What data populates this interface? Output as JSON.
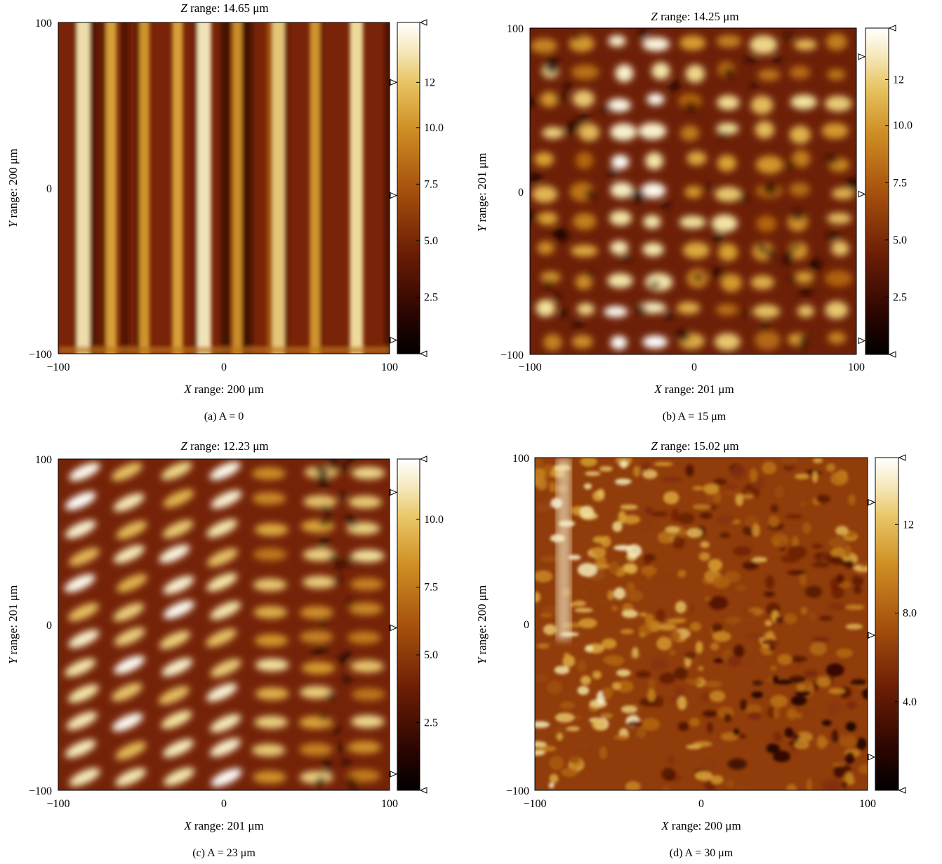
{
  "panels": [
    {
      "z_title_prefix": "Z",
      "z_title_rest": " range: 14.65 μm",
      "x_label_prefix": "X",
      "x_label_rest": " range: 200 μm",
      "y_label_prefix": "Y",
      "y_label_rest": " range: 200 μm",
      "caption": "(a)  A = 0",
      "x_ticks": [
        "−100",
        "0",
        "100"
      ],
      "y_ticks": [
        "100",
        "0",
        "−100"
      ],
      "colorbar_ticks": [
        "12",
        "10.0",
        "7.5",
        "5.0",
        "2.5"
      ]
    },
    {
      "z_title_prefix": "Z",
      "z_title_rest": " range: 14.25 μm",
      "x_label_prefix": "X",
      "x_label_rest": " range: 201 μm",
      "y_label_prefix": "Y",
      "y_label_rest": " range: 201 μm",
      "caption": "(b)  A = 15 μm",
      "x_ticks": [
        "−100",
        "0",
        "100"
      ],
      "y_ticks": [
        "100",
        "0",
        "−100"
      ],
      "colorbar_ticks": [
        "12",
        "10.0",
        "7.5",
        "5.0",
        "2.5"
      ]
    },
    {
      "z_title_prefix": "Z",
      "z_title_rest": " range: 12.23 μm",
      "x_label_prefix": "X",
      "x_label_rest": " range: 201 μm",
      "y_label_prefix": "Y",
      "y_label_rest": " range: 201 μm",
      "caption": "(c)  A = 23 μm",
      "x_ticks": [
        "−100",
        "0",
        "100"
      ],
      "y_ticks": [
        "100",
        "0",
        "−100"
      ],
      "colorbar_ticks": [
        "10.0",
        "7.5",
        "5.0",
        "2.5"
      ]
    },
    {
      "z_title_prefix": "Z",
      "z_title_rest": " range: 15.02 μm",
      "x_label_prefix": "X",
      "x_label_rest": " range: 200 μm",
      "y_label_prefix": "Y",
      "y_label_rest": " range: 200 μm",
      "caption": "(d)  A = 30 μm",
      "x_ticks": [
        "−100",
        "0",
        "100"
      ],
      "y_ticks": [
        "100",
        "0",
        "−100"
      ],
      "colorbar_ticks": [
        "12",
        "8.0",
        "4.0"
      ]
    }
  ],
  "chart_data": [
    {
      "type": "heatmap",
      "title": "Z range: 14.65 μm",
      "xlabel": "X range: 200 μm",
      "ylabel": "Y range: 200 μm",
      "xlim": [
        -100,
        100
      ],
      "ylim": [
        -100,
        100
      ],
      "x_ticks": [
        -100,
        0,
        100
      ],
      "y_ticks": [
        -100,
        0,
        100
      ],
      "colorbar": {
        "range": [
          0,
          14.65
        ],
        "ticks": [
          12,
          10.0,
          7.5,
          5.0,
          2.5
        ],
        "markers": [
          12,
          7,
          0.6
        ]
      },
      "pattern": "vertical-stripes",
      "stripe_x": [
        -85,
        -68,
        -48,
        -28,
        -12,
        8,
        28,
        33,
        55,
        80
      ],
      "stripe_brightness": [
        0.95,
        0.6,
        0.55,
        0.6,
        1.0,
        0.5,
        0.2,
        0.8,
        0.55,
        0.9
      ],
      "colormap": [
        "#000000",
        "#3b0a02",
        "#7a2508",
        "#b0620f",
        "#d9a133",
        "#f2e29b",
        "#ffffff"
      ],
      "grid": false,
      "legend": "none"
    },
    {
      "type": "heatmap",
      "title": "Z range: 14.25 μm",
      "xlabel": "X range: 201 μm",
      "ylabel": "Y range: 201 μm",
      "xlim": [
        -100,
        100
      ],
      "ylim": [
        -100,
        100
      ],
      "x_ticks": [
        -100,
        0,
        100
      ],
      "y_ticks": [
        -100,
        0,
        100
      ],
      "colorbar": {
        "range": [
          0,
          14.25
        ],
        "ticks": [
          12,
          10.0,
          7.5,
          5.0,
          2.5
        ],
        "markers": [
          13,
          7,
          0.6
        ]
      },
      "pattern": "blob-grid",
      "cols": 9,
      "rows": 11,
      "colormap": [
        "#000000",
        "#3b0a02",
        "#7a2508",
        "#b0620f",
        "#d9a133",
        "#f2e29b",
        "#ffffff"
      ],
      "grid": false,
      "legend": "none"
    },
    {
      "type": "heatmap",
      "title": "Z range: 12.23 μm",
      "xlabel": "X range: 201 μm",
      "ylabel": "Y range: 201 μm",
      "xlim": [
        -100,
        100
      ],
      "ylim": [
        -100,
        100
      ],
      "x_ticks": [
        -100,
        0,
        100
      ],
      "y_ticks": [
        -100,
        0,
        100
      ],
      "colorbar": {
        "range": [
          0,
          12.23
        ],
        "ticks": [
          10.0,
          7.5,
          5.0,
          2.5
        ],
        "markers": [
          11,
          6,
          0.6
        ]
      },
      "pattern": "diagonal-ridges",
      "cols": 7,
      "rows": 12,
      "colormap": [
        "#000000",
        "#3b0a02",
        "#7a2508",
        "#b0620f",
        "#d9a133",
        "#f2e29b",
        "#ffffff"
      ],
      "grid": false,
      "legend": "none"
    },
    {
      "type": "heatmap",
      "title": "Z range: 15.02 μm",
      "xlabel": "X range: 200 μm",
      "ylabel": "Y range: 200 μm",
      "xlim": [
        -100,
        100
      ],
      "ylim": [
        -100,
        100
      ],
      "x_ticks": [
        -100,
        0,
        100
      ],
      "y_ticks": [
        -100,
        0,
        100
      ],
      "colorbar": {
        "range": [
          0,
          15.02
        ],
        "ticks": [
          12,
          8.0,
          4.0
        ],
        "markers": [
          13,
          7,
          1.5
        ]
      },
      "pattern": "irregular-texture",
      "colormap": [
        "#000000",
        "#3b0a02",
        "#7a2508",
        "#b0620f",
        "#d9a133",
        "#f2e29b",
        "#ffffff"
      ],
      "grid": false,
      "legend": "none"
    }
  ]
}
